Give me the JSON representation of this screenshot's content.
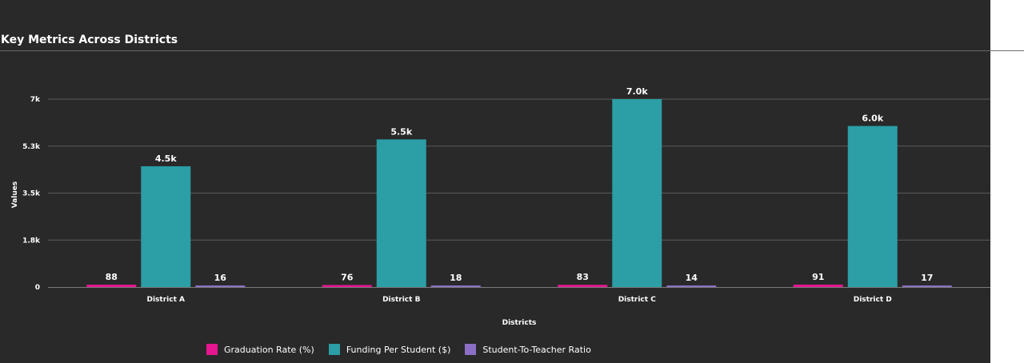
{
  "chart_data": {
    "type": "bar",
    "title": "Key Metrics Across Districts",
    "xlabel": "Districts",
    "ylabel": "Values",
    "categories": [
      "District A",
      "District B",
      "District C",
      "District D"
    ],
    "series": [
      {
        "name": "Graduation Rate (%)",
        "color": "#e5168f",
        "values": [
          88,
          76,
          83,
          91
        ],
        "labels": [
          "88",
          "76",
          "83",
          "91"
        ]
      },
      {
        "name": "Funding Per Student ($)",
        "color": "#2b9ea6",
        "values": [
          4500,
          5500,
          7000,
          6000
        ],
        "labels": [
          "4.5k",
          "5.5k",
          "7.0k",
          "6.0k"
        ]
      },
      {
        "name": "Student-To-Teacher Ratio",
        "color": "#8c6fc4",
        "values": [
          16,
          18,
          14,
          17
        ],
        "labels": [
          "16",
          "18",
          "14",
          "17"
        ]
      }
    ],
    "yticks": [
      {
        "value": 0,
        "label": "0"
      },
      {
        "value": 1750,
        "label": "1.8k"
      },
      {
        "value": 3500,
        "label": "3.5k"
      },
      {
        "value": 5250,
        "label": "5.3k"
      },
      {
        "value": 7000,
        "label": "7k"
      }
    ],
    "ylim": [
      0,
      7000
    ],
    "grid": true,
    "legend_position": "bottom"
  }
}
